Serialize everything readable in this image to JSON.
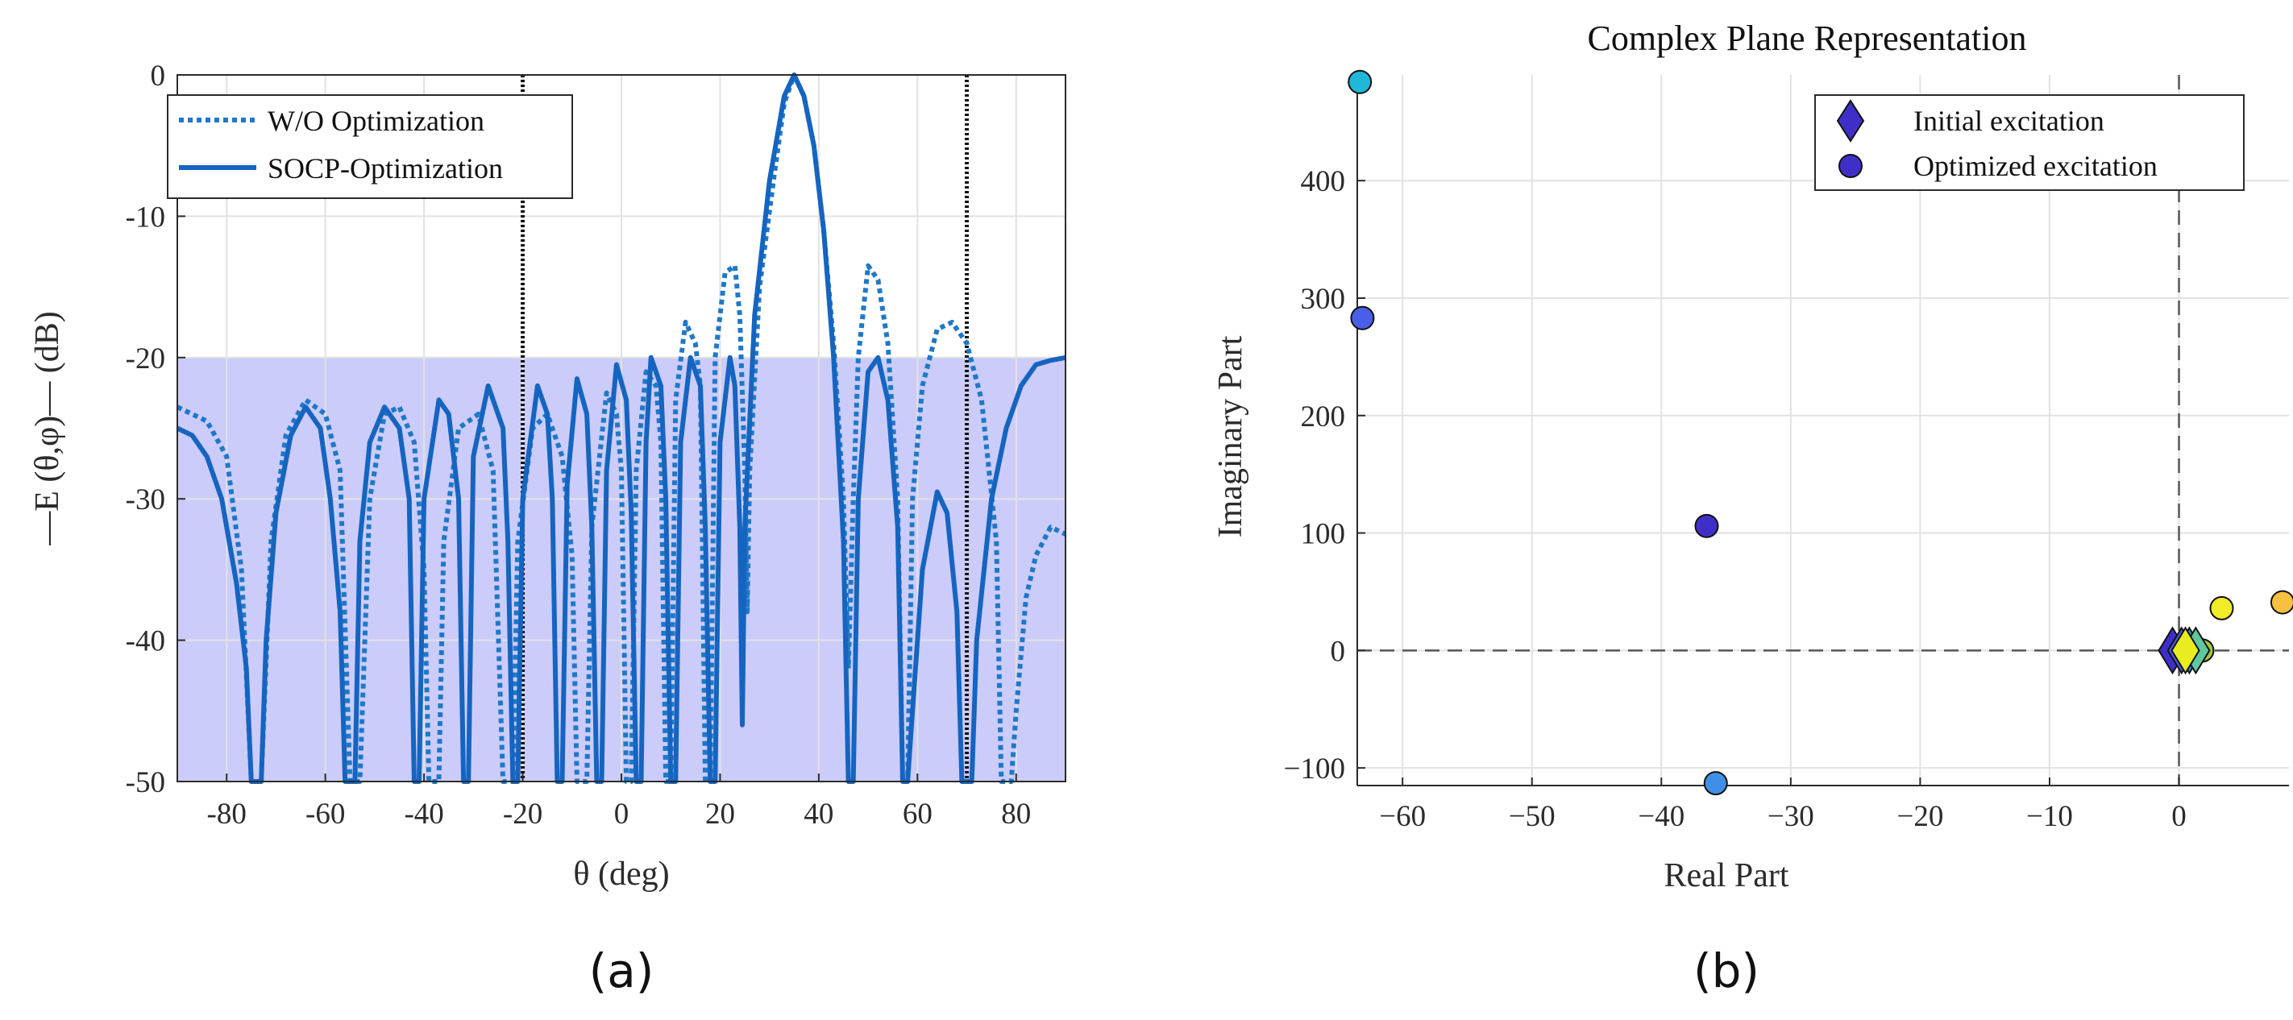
{
  "chart_data": [
    {
      "type": "line",
      "panel_label": "(a)",
      "title": "",
      "xlabel": "θ (deg)",
      "ylabel": "—E (θ,φ)— (dB)",
      "xlim": [
        -90,
        90
      ],
      "ylim": [
        -50,
        0
      ],
      "xticks": [
        "-80",
        "-60",
        "-40",
        "-20",
        "0",
        "20",
        "40",
        "60",
        "80"
      ],
      "yticks": [
        "0",
        "-10",
        "-20",
        "-30",
        "-40",
        "-50"
      ],
      "grid": true,
      "legend_position": "top-left",
      "mask_region": {
        "x": [
          -90,
          90
        ],
        "y": [
          -50,
          -20
        ],
        "color": "#ccccfa"
      },
      "vertical_lines_x": [
        -20,
        70
      ],
      "series": [
        {
          "name": "W/O Optimization",
          "style": "dotted",
          "color": "#1f78c8",
          "points": [
            [
              -90,
              -23.5
            ],
            [
              -84,
              -24.5
            ],
            [
              -80,
              -27
            ],
            [
              -77,
              -35
            ],
            [
              -75,
              -50
            ],
            [
              -73,
              -50
            ],
            [
              -71,
              -33
            ],
            [
              -68,
              -25.5
            ],
            [
              -64,
              -23
            ],
            [
              -60,
              -24
            ],
            [
              -57,
              -28
            ],
            [
              -55,
              -50
            ],
            [
              -53,
              -50
            ],
            [
              -51,
              -30
            ],
            [
              -48,
              -24
            ],
            [
              -45,
              -23.5
            ],
            [
              -42,
              -26
            ],
            [
              -40,
              -35
            ],
            [
              -39,
              -50
            ],
            [
              -37,
              -50
            ],
            [
              -36,
              -33
            ],
            [
              -33,
              -25
            ],
            [
              -29,
              -24
            ],
            [
              -26,
              -28
            ],
            [
              -24,
              -50
            ],
            [
              -22,
              -50
            ],
            [
              -21,
              -33
            ],
            [
              -18,
              -25
            ],
            [
              -15,
              -24
            ],
            [
              -12,
              -27
            ],
            [
              -10,
              -34
            ],
            [
              -9,
              -50
            ],
            [
              -7,
              -50
            ],
            [
              -6,
              -32
            ],
            [
              -3,
              -22.5
            ],
            [
              -1,
              -24
            ],
            [
              0,
              -28
            ],
            [
              1,
              -50
            ],
            [
              2,
              -50
            ],
            [
              3,
              -28
            ],
            [
              5,
              -21
            ],
            [
              7,
              -22
            ],
            [
              8,
              -26
            ],
            [
              9,
              -50
            ],
            [
              10,
              -50
            ],
            [
              11,
              -23
            ],
            [
              13,
              -17.5
            ],
            [
              15,
              -19
            ],
            [
              16,
              -22
            ],
            [
              17,
              -50
            ],
            [
              18,
              -50
            ],
            [
              19,
              -20
            ],
            [
              21,
              -14
            ],
            [
              23,
              -13.5
            ],
            [
              24,
              -17
            ],
            [
              25,
              -28
            ],
            [
              25.5,
              -38
            ],
            [
              26,
              -28
            ],
            [
              28,
              -15
            ],
            [
              31,
              -7
            ],
            [
              33,
              -2
            ],
            [
              35,
              0
            ],
            [
              37,
              -1.5
            ],
            [
              39,
              -5
            ],
            [
              41,
              -11
            ],
            [
              43,
              -19
            ],
            [
              45,
              -30
            ],
            [
              46,
              -42
            ],
            [
              47,
              -30
            ],
            [
              48,
              -20
            ],
            [
              50,
              -13.5
            ],
            [
              52,
              -14.5
            ],
            [
              54,
              -19
            ],
            [
              56,
              -30
            ],
            [
              57,
              -50
            ],
            [
              58,
              -50
            ],
            [
              59,
              -30
            ],
            [
              61,
              -22
            ],
            [
              64,
              -18
            ],
            [
              67,
              -17.5
            ],
            [
              70,
              -19
            ],
            [
              73,
              -23
            ],
            [
              76,
              -33
            ],
            [
              77,
              -50
            ],
            [
              79,
              -50
            ],
            [
              80,
              -45
            ],
            [
              82,
              -37
            ],
            [
              84,
              -34
            ],
            [
              87,
              -32
            ],
            [
              90,
              -32.5
            ]
          ]
        },
        {
          "name": "SOCP-Optimization",
          "style": "solid",
          "color": "#1565c0",
          "points": [
            [
              -90,
              -25
            ],
            [
              -87,
              -25.5
            ],
            [
              -84,
              -27
            ],
            [
              -81,
              -30
            ],
            [
              -78,
              -36
            ],
            [
              -76,
              -42
            ],
            [
              -75,
              -50
            ],
            [
              -73,
              -50
            ],
            [
              -72,
              -40
            ],
            [
              -70,
              -31
            ],
            [
              -67,
              -25.5
            ],
            [
              -64,
              -23.5
            ],
            [
              -61,
              -25
            ],
            [
              -59,
              -30
            ],
            [
              -57,
              -38
            ],
            [
              -56,
              -50
            ],
            [
              -54,
              -50
            ],
            [
              -53,
              -33
            ],
            [
              -51,
              -26
            ],
            [
              -48,
              -23.5
            ],
            [
              -45,
              -25
            ],
            [
              -43,
              -30
            ],
            [
              -42,
              -50
            ],
            [
              -41,
              -50
            ],
            [
              -40,
              -30
            ],
            [
              -37,
              -23
            ],
            [
              -35,
              -24
            ],
            [
              -33,
              -30
            ],
            [
              -32,
              -50
            ],
            [
              -31,
              -50
            ],
            [
              -30,
              -27
            ],
            [
              -27,
              -22
            ],
            [
              -24,
              -25
            ],
            [
              -23,
              -33
            ],
            [
              -22,
              -50
            ],
            [
              -21,
              -50
            ],
            [
              -20,
              -30
            ],
            [
              -17,
              -22
            ],
            [
              -15,
              -24
            ],
            [
              -14,
              -30
            ],
            [
              -13,
              -50
            ],
            [
              -12,
              -50
            ],
            [
              -11,
              -29
            ],
            [
              -9,
              -21.5
            ],
            [
              -7,
              -24
            ],
            [
              -6,
              -32
            ],
            [
              -5,
              -50
            ],
            [
              -4,
              -50
            ],
            [
              -3,
              -28
            ],
            [
              -1,
              -20.5
            ],
            [
              1,
              -23
            ],
            [
              2,
              -31
            ],
            [
              3,
              -50
            ],
            [
              4,
              -50
            ],
            [
              5,
              -26
            ],
            [
              6,
              -20
            ],
            [
              8,
              -22
            ],
            [
              9,
              -30
            ],
            [
              10,
              -50
            ],
            [
              11,
              -50
            ],
            [
              12,
              -26
            ],
            [
              14,
              -20
            ],
            [
              16,
              -22
            ],
            [
              17,
              -32
            ],
            [
              18,
              -50
            ],
            [
              19,
              -50
            ],
            [
              20,
              -26
            ],
            [
              22,
              -20
            ],
            [
              23,
              -22
            ],
            [
              24,
              -32
            ],
            [
              24.5,
              -46
            ],
            [
              25,
              -32
            ],
            [
              27,
              -17
            ],
            [
              30,
              -7.5
            ],
            [
              33,
              -1.5
            ],
            [
              35,
              0
            ],
            [
              37,
              -1.5
            ],
            [
              39,
              -5
            ],
            [
              41,
              -11
            ],
            [
              43,
              -20
            ],
            [
              45,
              -33
            ],
            [
              46,
              -50
            ],
            [
              47,
              -50
            ],
            [
              48,
              -30
            ],
            [
              50,
              -21
            ],
            [
              52,
              -20
            ],
            [
              54,
              -23
            ],
            [
              56,
              -32
            ],
            [
              57,
              -50
            ],
            [
              58,
              -50
            ],
            [
              59,
              -45
            ],
            [
              61,
              -35
            ],
            [
              64,
              -29.5
            ],
            [
              66,
              -31
            ],
            [
              68,
              -38
            ],
            [
              69,
              -50
            ],
            [
              71,
              -50
            ],
            [
              72,
              -40
            ],
            [
              75,
              -30
            ],
            [
              78,
              -25
            ],
            [
              81,
              -22
            ],
            [
              84,
              -20.5
            ],
            [
              87,
              -20.2
            ],
            [
              90,
              -20
            ]
          ]
        }
      ]
    },
    {
      "type": "scatter",
      "panel_label": "(b)",
      "title": "Complex Plane Representation",
      "xlabel": "Real Part",
      "ylabel": "Imaginary Part",
      "xlim": [
        -63.5,
        8.5
      ],
      "ylim": [
        -115,
        490
      ],
      "xticks": [
        "−60",
        "−50",
        "−40",
        "−30",
        "−20",
        "−10",
        "0"
      ],
      "yticks": [
        "400",
        "300",
        "200",
        "100",
        "0",
        "−100"
      ],
      "grid": true,
      "legend_position": "top-right",
      "zero_lines": true,
      "series": [
        {
          "name": "Initial excitation",
          "marker": "diamond",
          "points": [
            {
              "x": -0.5,
              "y": 0,
              "color": "#3f2fc8"
            },
            {
              "x": 0.2,
              "y": 0,
              "color": "#4a5fe8"
            },
            {
              "x": 0.8,
              "y": 0,
              "color": "#2f8fd8"
            },
            {
              "x": 1.3,
              "y": 0,
              "color": "#5fc8a0"
            },
            {
              "x": 0.5,
              "y": 0,
              "color": "#e8ec20"
            }
          ]
        },
        {
          "name": "Optimized excitation",
          "marker": "circle",
          "points": [
            {
              "x": -63.3,
              "y": 484,
              "color": "#1fb8d8",
              "in_legend": false
            },
            {
              "x": -63.1,
              "y": 283,
              "color": "#4a5fe8",
              "in_legend": false
            },
            {
              "x": -36.5,
              "y": 106,
              "color": "#3f2fc8",
              "in_legend": true
            },
            {
              "x": -35.8,
              "y": -113,
              "color": "#3f8fe8",
              "in_legend": false
            },
            {
              "x": 3.3,
              "y": 36,
              "color": "#f0ec28",
              "in_legend": false
            },
            {
              "x": 8.0,
              "y": 41,
              "color": "#f8c040",
              "in_legend": false
            },
            {
              "x": 1.8,
              "y": 0,
              "color": "#a0c840",
              "in_legend": false
            },
            {
              "x": 1.0,
              "y": 0,
              "color": "#70b860",
              "in_legend": false
            }
          ]
        }
      ]
    }
  ]
}
